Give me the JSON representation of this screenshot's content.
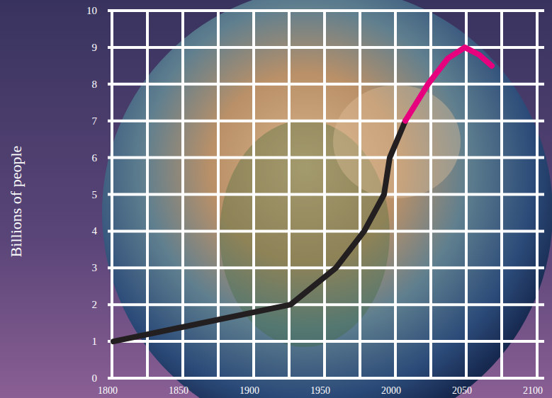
{
  "chart_data": {
    "type": "line",
    "y_label": "Billions of people",
    "x": [
      1804,
      1929,
      1961,
      1981,
      1995,
      1999,
      2010,
      2026,
      2040,
      2052,
      2062,
      2071
    ],
    "series": [
      {
        "color": "#231f20",
        "values": [
          1.0,
          2.0,
          3.0,
          4.0,
          5.0,
          6.0,
          7.0,
          null,
          null,
          null,
          null,
          null
        ]
      },
      {
        "color": "#e6007e",
        "values": [
          null,
          null,
          null,
          null,
          null,
          null,
          7.0,
          8.0,
          8.7,
          9.0,
          8.8,
          8.5
        ]
      }
    ],
    "xlim": [
      1800,
      2100
    ],
    "xticks": [
      1800,
      1850,
      1900,
      1950,
      2000,
      2050,
      2100
    ],
    "ylim": [
      0,
      10
    ],
    "yticks": [
      0,
      1,
      2,
      3,
      4,
      5,
      6,
      7,
      8,
      9,
      10
    ],
    "grid": true
  }
}
